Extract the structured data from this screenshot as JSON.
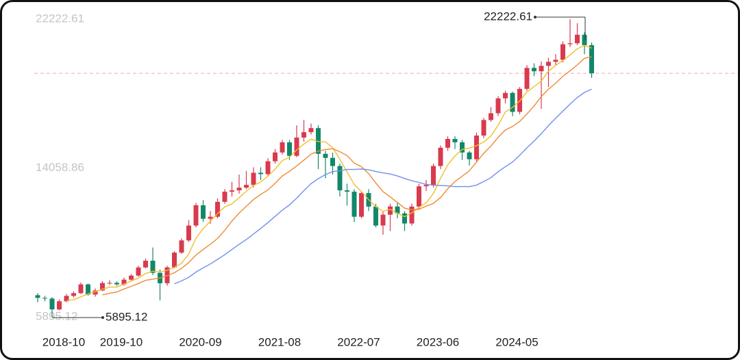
{
  "chart_data": {
    "type": "candlestick",
    "categories": [
      null,
      null,
      null,
      null,
      "2018-10",
      null,
      null,
      null,
      null,
      null,
      null,
      null,
      "2019-10",
      null,
      null,
      null,
      null,
      null,
      null,
      null,
      null,
      null,
      null,
      "2020-09",
      null,
      null,
      null,
      null,
      null,
      null,
      null,
      null,
      null,
      null,
      "2021-08",
      null,
      null,
      null,
      null,
      null,
      null,
      null,
      null,
      null,
      null,
      "2022-07",
      null,
      null,
      null,
      null,
      null,
      null,
      null,
      null,
      null,
      null,
      "2023-06",
      null,
      null,
      null,
      null,
      null,
      null,
      null,
      null,
      null,
      null,
      "2024-05",
      null,
      null,
      null,
      null,
      null,
      null,
      null,
      null,
      null,
      null
    ],
    "candles": {
      "open": [
        7085,
        6936,
        6899,
        6306,
        6750,
        7047,
        7196,
        7678,
        7121,
        7344,
        7752,
        7760,
        7678,
        7938,
        8160,
        8605,
        8976,
        8308,
        7740,
        8610,
        9421,
        10089,
        10905,
        12018,
        11276,
        11388,
        12204,
        12760,
        12835,
        12983,
        13132,
        13800,
        13725,
        14430,
        14912,
        15469,
        14727,
        15729,
        16025,
        16248,
        14838,
        14616,
        14170,
        12835,
        12760,
        11388,
        12686,
        11944,
        10905,
        11499,
        11950,
        11573,
        11017,
        11944,
        13057,
        13132,
        14170,
        15172,
        15654,
        15469,
        14912,
        14541,
        15840,
        16693,
        17064,
        17880,
        18177,
        17138,
        18400,
        19550,
        19364,
        19661,
        19884,
        19995,
        20848,
        20900,
        21368,
        20800
      ],
      "high": [
        7200,
        7050,
        6980,
        6850,
        7150,
        7300,
        7780,
        7720,
        7450,
        7850,
        7900,
        7850,
        8050,
        8250,
        8700,
        9100,
        9700,
        8500,
        8700,
        9500,
        10200,
        11200,
        12150,
        12300,
        11700,
        12400,
        12900,
        13300,
        13700,
        13900,
        14100,
        14100,
        14600,
        15100,
        15600,
        15600,
        16400,
        16700,
        16500,
        16400,
        15000,
        14900,
        14300,
        13200,
        12900,
        12800,
        12900,
        12100,
        11700,
        12100,
        12150,
        11700,
        12100,
        13200,
        13400,
        14300,
        15300,
        15800,
        15800,
        15600,
        15000,
        16000,
        16800,
        17400,
        18000,
        18300,
        18250,
        18500,
        19700,
        19800,
        19900,
        20100,
        20300,
        21000,
        22222.61,
        22000,
        21500,
        20950
      ],
      "low": [
        6700,
        6750,
        5895.12,
        6250,
        6700,
        6950,
        7150,
        7050,
        7000,
        7300,
        7650,
        7600,
        7600,
        7880,
        8100,
        8550,
        8200,
        6800,
        7600,
        8550,
        9350,
        10000,
        10800,
        11100,
        11000,
        11300,
        12100,
        12500,
        12650,
        12900,
        13000,
        13400,
        13650,
        14300,
        14800,
        14500,
        14650,
        15500,
        15900,
        14000,
        13500,
        13700,
        12500,
        12000,
        11100,
        11300,
        11700,
        10800,
        10400,
        10600,
        11300,
        10600,
        10900,
        11800,
        12800,
        13000,
        14000,
        15000,
        15100,
        14500,
        14200,
        14400,
        15700,
        16600,
        16900,
        17600,
        16900,
        17000,
        18300,
        19100,
        17300,
        18500,
        19700,
        19850,
        20700,
        20800,
        20300,
        19000
      ],
      "close": [
        6936,
        6899,
        6306,
        6750,
        7047,
        7196,
        7678,
        7121,
        7344,
        7752,
        7760,
        7678,
        7938,
        8160,
        8605,
        8976,
        8308,
        7740,
        8610,
        9421,
        10089,
        10905,
        12018,
        11276,
        11388,
        12204,
        12760,
        12835,
        12983,
        13132,
        13800,
        13725,
        14430,
        14912,
        15469,
        14727,
        15729,
        16025,
        16248,
        14838,
        14616,
        14170,
        12835,
        12760,
        11388,
        12686,
        11944,
        10905,
        11499,
        11950,
        11573,
        11017,
        11944,
        13057,
        13132,
        14170,
        15172,
        15654,
        15469,
        14912,
        14541,
        15840,
        16693,
        17064,
        17880,
        18177,
        17138,
        18400,
        19550,
        19364,
        19661,
        19884,
        19995,
        20848,
        20900,
        21368,
        20800,
        19253
      ]
    },
    "up_color": "#d93a4e",
    "down_color": "#13876a",
    "series": [
      {
        "color": "#f3bd2b",
        "values": [
          null,
          null,
          null,
          null,
          6788,
          6840,
          6995,
          7158,
          7277,
          7418,
          7531,
          7531,
          7694,
          7858,
          8028,
          8271,
          8397,
          8358,
          8448,
          8611,
          8834,
          9353,
          10209,
          10742,
          11135,
          11558,
          11929,
          12093,
          12434,
          12783,
          13102,
          13295,
          13614,
          14000,
          14467,
          14653,
          15053,
          15372,
          15640,
          15513,
          15491,
          15179,
          14541,
          13844,
          13154,
          12768,
          12323,
          11937,
          11684,
          11797,
          11574,
          11389,
          11597,
          11908,
          12145,
          12664,
          13495,
          14237,
          14719,
          15075,
          15150,
          15283,
          15491,
          15810,
          16404,
          17131,
          17390,
          17732,
          18229,
          18526,
          18823,
          19372,
          19691,
          19950,
          20258,
          20599,
          20782,
          20634
        ]
      },
      {
        "color": "#ef8a34",
        "values": [
          null,
          null,
          null,
          null,
          null,
          null,
          null,
          null,
          null,
          7103,
          7186,
          7263,
          7426,
          7568,
          7723,
          7901,
          7964,
          8026,
          8153,
          8320,
          8553,
          8875,
          9284,
          9595,
          9873,
          10196,
          10641,
          11151,
          11588,
          11959,
          12330,
          12612,
          12854,
          13217,
          13625,
          13878,
          14174,
          14493,
          14820,
          14990,
          15072,
          15116,
          14957,
          14742,
          14334,
          14130,
          13751,
          13239,
          12764,
          12476,
          12171,
          11856,
          11767,
          11796,
          11971,
          12119,
          12442,
          12917,
          13314,
          13610,
          13907,
          14389,
          14864,
          15265,
          15740,
          16141,
          16337,
          16612,
          17020,
          17465,
          17977,
          18381,
          18712,
          19090,
          19392,
          19711,
          20077,
          20163
        ]
      },
      {
        "color": "#6f8fef",
        "values": [
          null,
          null,
          null,
          null,
          null,
          null,
          null,
          null,
          null,
          null,
          null,
          null,
          null,
          null,
          null,
          null,
          null,
          null,
          null,
          7712,
          7870,
          8069,
          8355,
          8582,
          8798,
          9049,
          9303,
          9589,
          9871,
          10140,
          10442,
          10744,
          11069,
          11406,
          11749,
          12037,
          12408,
          12822,
          13204,
          13475,
          13701,
          13864,
          13906,
          13980,
          13979,
          14004,
          13963,
          13866,
          13792,
          13733,
          13622,
          13486,
          13362,
          13269,
          13153,
          13125,
          13097,
          13078,
          13039,
          13043,
          13039,
          13123,
          13316,
          13531,
          13856,
          14130,
          14390,
          14765,
          15167,
          15538,
          15942,
          16385,
          16788,
          17178,
          17566,
          17926,
          18207,
          18388
        ]
      }
    ],
    "ylim": [
      5895.12,
      22222.61
    ],
    "yticks": [
      5895.12,
      14058.86,
      22222.61
    ],
    "current_line_color": "#f2a8a0"
  }
}
